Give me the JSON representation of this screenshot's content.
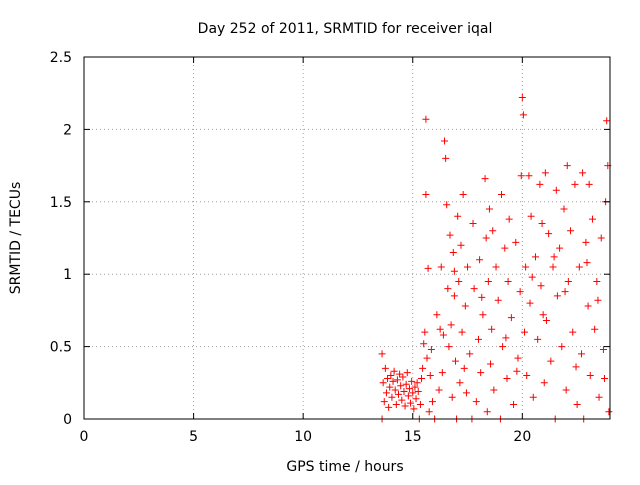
{
  "chart_data": {
    "type": "scatter",
    "title": "Day 252 of 2011, SRMTID for receiver iqal",
    "xlabel": "GPS time / hours",
    "ylabel": "SRMTID / TECUs",
    "xlim": [
      0,
      24
    ],
    "ylim": [
      0,
      2.5
    ],
    "x_ticks": [
      0,
      5,
      10,
      15,
      20
    ],
    "x_tick_labels": [
      "0",
      "5",
      "10",
      "15",
      "20"
    ],
    "y_ticks": [
      0,
      0.5,
      1,
      1.5,
      2,
      2.5
    ],
    "y_tick_labels": [
      "0",
      "0.5",
      "1",
      "1.5",
      "2",
      "2.5"
    ],
    "grid": true,
    "marker": "+",
    "series": [
      {
        "name": "SRMTID",
        "color": "#ff0000",
        "points": [
          [
            13.6,
            0.0
          ],
          [
            13.6,
            0.45
          ],
          [
            13.65,
            0.25
          ],
          [
            13.7,
            0.12
          ],
          [
            13.75,
            0.35
          ],
          [
            13.8,
            0.18
          ],
          [
            13.85,
            0.28
          ],
          [
            13.9,
            0.08
          ],
          [
            13.95,
            0.22
          ],
          [
            14.0,
            0.3
          ],
          [
            14.05,
            0.15
          ],
          [
            14.1,
            0.26
          ],
          [
            14.15,
            0.33
          ],
          [
            14.2,
            0.2
          ],
          [
            14.25,
            0.1
          ],
          [
            14.3,
            0.27
          ],
          [
            14.35,
            0.17
          ],
          [
            14.4,
            0.31
          ],
          [
            14.45,
            0.23
          ],
          [
            14.5,
            0.13
          ],
          [
            14.55,
            0.29
          ],
          [
            14.6,
            0.19
          ],
          [
            14.65,
            0.09
          ],
          [
            14.7,
            0.24
          ],
          [
            14.75,
            0.32
          ],
          [
            14.8,
            0.16
          ],
          [
            14.85,
            0.21
          ],
          [
            14.9,
            0.11
          ],
          [
            14.95,
            0.26
          ],
          [
            15.0,
            0.18
          ],
          [
            15.05,
            0.07
          ],
          [
            15.1,
            0.22
          ],
          [
            15.15,
            0.14
          ],
          [
            15.2,
            0.25
          ],
          [
            15.25,
            0.19
          ],
          [
            15.3,
            0.0
          ],
          [
            15.35,
            0.1
          ],
          [
            15.4,
            0.28
          ],
          [
            15.45,
            0.35
          ],
          [
            15.5,
            0.52
          ],
          [
            15.55,
            0.6
          ],
          [
            15.6,
            2.07
          ],
          [
            15.6,
            1.55
          ],
          [
            15.65,
            0.42
          ],
          [
            15.7,
            1.04
          ],
          [
            15.75,
            0.05
          ],
          [
            15.8,
            0.3
          ],
          [
            15.85,
            0.48
          ],
          [
            15.9,
            0.12
          ],
          [
            16.0,
            0.0
          ],
          [
            16.1,
            0.72
          ],
          [
            16.2,
            0.2
          ],
          [
            16.3,
            1.05
          ],
          [
            16.35,
            0.32
          ],
          [
            16.4,
            0.58
          ],
          [
            16.45,
            1.92
          ],
          [
            16.5,
            1.8
          ],
          [
            16.55,
            1.48
          ],
          [
            16.6,
            0.9
          ],
          [
            16.65,
            0.5
          ],
          [
            16.7,
            1.27
          ],
          [
            16.75,
            0.65
          ],
          [
            16.8,
            0.15
          ],
          [
            16.85,
            1.15
          ],
          [
            16.9,
            0.85
          ],
          [
            16.95,
            0.4
          ],
          [
            17.0,
            0.0
          ],
          [
            17.05,
            1.4
          ],
          [
            17.1,
            0.95
          ],
          [
            17.15,
            0.25
          ],
          [
            17.2,
            1.2
          ],
          [
            17.25,
            0.6
          ],
          [
            17.3,
            1.55
          ],
          [
            17.35,
            0.35
          ],
          [
            17.4,
            0.78
          ],
          [
            17.5,
            1.05
          ],
          [
            17.6,
            0.45
          ],
          [
            17.7,
            0.0
          ],
          [
            17.75,
            1.35
          ],
          [
            17.8,
            0.9
          ],
          [
            17.9,
            0.12
          ],
          [
            18.0,
            0.55
          ],
          [
            18.05,
            1.1
          ],
          [
            18.1,
            0.32
          ],
          [
            18.2,
            0.72
          ],
          [
            18.3,
            1.66
          ],
          [
            18.35,
            1.25
          ],
          [
            18.4,
            0.05
          ],
          [
            18.45,
            0.95
          ],
          [
            18.5,
            1.45
          ],
          [
            18.55,
            0.38
          ],
          [
            18.6,
            0.62
          ],
          [
            18.7,
            0.2
          ],
          [
            18.8,
            1.05
          ],
          [
            18.9,
            0.82
          ],
          [
            19.0,
            0.0
          ],
          [
            19.05,
            1.55
          ],
          [
            19.1,
            0.5
          ],
          [
            19.2,
            1.18
          ],
          [
            19.3,
            0.28
          ],
          [
            19.35,
            0.95
          ],
          [
            19.4,
            1.38
          ],
          [
            19.5,
            0.7
          ],
          [
            19.6,
            0.1
          ],
          [
            19.7,
            1.22
          ],
          [
            19.8,
            0.42
          ],
          [
            19.9,
            0.88
          ],
          [
            19.95,
            1.68
          ],
          [
            20.0,
            2.22
          ],
          [
            20.05,
            2.1
          ],
          [
            20.1,
            0.6
          ],
          [
            20.15,
            1.05
          ],
          [
            20.2,
            0.3
          ],
          [
            20.3,
            1.68
          ],
          [
            20.35,
            0.8
          ],
          [
            20.4,
            1.4
          ],
          [
            20.5,
            0.15
          ],
          [
            20.6,
            1.12
          ],
          [
            20.7,
            0.55
          ],
          [
            20.8,
            1.62
          ],
          [
            20.85,
            0.92
          ],
          [
            20.9,
            1.35
          ],
          [
            21.0,
            0.25
          ],
          [
            21.05,
            1.7
          ],
          [
            21.1,
            0.68
          ],
          [
            21.2,
            1.28
          ],
          [
            21.3,
            0.4
          ],
          [
            21.4,
            1.05
          ],
          [
            21.5,
            0.0
          ],
          [
            21.55,
            1.58
          ],
          [
            21.6,
            0.85
          ],
          [
            21.7,
            1.18
          ],
          [
            21.8,
            0.5
          ],
          [
            21.9,
            1.45
          ],
          [
            22.0,
            0.2
          ],
          [
            22.05,
            1.75
          ],
          [
            22.1,
            0.95
          ],
          [
            22.2,
            1.3
          ],
          [
            22.3,
            0.6
          ],
          [
            22.4,
            1.62
          ],
          [
            22.5,
            0.1
          ],
          [
            22.6,
            1.05
          ],
          [
            22.7,
            0.45
          ],
          [
            22.75,
            1.7
          ],
          [
            22.8,
            0.0
          ],
          [
            22.9,
            1.22
          ],
          [
            23.0,
            0.78
          ],
          [
            23.05,
            1.62
          ],
          [
            23.1,
            0.3
          ],
          [
            23.2,
            1.38
          ],
          [
            23.3,
            0.62
          ],
          [
            23.4,
            0.95
          ],
          [
            23.5,
            0.15
          ],
          [
            23.6,
            1.25
          ],
          [
            23.7,
            0.48
          ],
          [
            23.8,
            1.5
          ],
          [
            23.85,
            2.06
          ],
          [
            23.9,
            1.75
          ],
          [
            23.95,
            0.05
          ],
          [
            16.25,
            0.62
          ],
          [
            16.9,
            1.02
          ],
          [
            17.45,
            0.18
          ],
          [
            18.15,
            0.84
          ],
          [
            18.65,
            1.3
          ],
          [
            19.25,
            0.56
          ],
          [
            19.75,
            0.33
          ],
          [
            20.45,
            0.98
          ],
          [
            20.95,
            0.72
          ],
          [
            21.45,
            1.12
          ],
          [
            21.95,
            0.88
          ],
          [
            22.45,
            0.36
          ],
          [
            22.95,
            1.08
          ],
          [
            23.45,
            0.82
          ],
          [
            23.75,
            0.28
          ]
        ]
      }
    ]
  }
}
